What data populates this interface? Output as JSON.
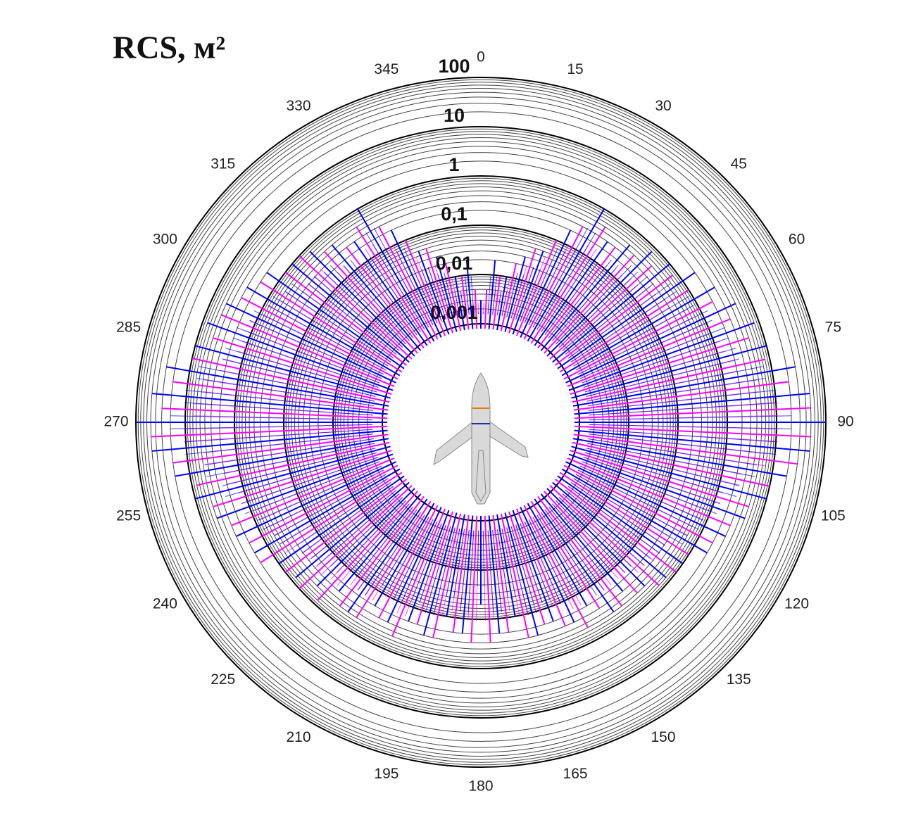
{
  "chart_data": {
    "type": "polar-spike",
    "title": "RCS, м²",
    "rscale": "log",
    "rlim": [
      1e-05,
      100
    ],
    "rticks": [
      {
        "value": 100,
        "label": "100"
      },
      10,
      1,
      {
        "value": 0.1,
        "label": "0,1"
      },
      {
        "value": 0.01,
        "label": "0,01"
      },
      {
        "value": 0.001,
        "label": "0,001"
      }
    ],
    "minor_grid": true,
    "thetaticks": [
      0,
      15,
      30,
      45,
      60,
      75,
      90,
      105,
      120,
      135,
      150,
      165,
      180,
      195,
      210,
      225,
      240,
      255,
      270,
      285,
      300,
      315,
      330,
      345
    ],
    "series": [
      {
        "color": "#ff00ff",
        "theta": [
          2.5,
          7.5,
          12.5,
          17.5,
          22.5,
          27.5,
          32.5,
          37.5,
          42.5,
          47.5,
          52.5,
          57.5,
          62.5,
          67.5,
          72.5,
          77.5,
          82.5,
          87.5,
          92.5,
          97.5,
          102.5,
          107.5,
          112.5,
          117.5,
          122.5,
          127.5,
          132.5,
          137.5,
          142.5,
          147.5,
          152.5,
          157.5,
          162.5,
          167.5,
          172.5,
          177.5,
          182.5,
          187.5,
          192.5,
          197.5,
          202.5,
          207.5,
          212.5,
          217.5,
          222.5,
          227.5,
          232.5,
          237.5,
          242.5,
          247.5,
          252.5,
          257.5,
          262.5,
          267.5,
          272.5,
          277.5,
          282.5,
          287.5,
          292.5,
          297.5,
          302.5,
          307.5,
          312.5,
          317.5,
          322.5,
          327.5,
          332.5,
          337.5,
          342.5,
          347.5,
          352.5,
          357.5
        ],
        "values": [
          0.005,
          0.01,
          0.02,
          0.05,
          0.1,
          0.3,
          0.5,
          0.3,
          0.4,
          0.5,
          0.8,
          1,
          2,
          3,
          5,
          8,
          20,
          50,
          50,
          30,
          10,
          5,
          3,
          2,
          1,
          1,
          0.8,
          0.5,
          0.5,
          0.3,
          0.5,
          0.3,
          0.2,
          0.3,
          0.2,
          0.3,
          0.3,
          0.2,
          0.3,
          0.2,
          0.5,
          0.3,
          0.5,
          0.5,
          0.8,
          1,
          1,
          2,
          2,
          3,
          5,
          8,
          20,
          50,
          30,
          20,
          10,
          5,
          5,
          3,
          2,
          1,
          1,
          0.5,
          0.3,
          0.5,
          0.3,
          0.1,
          0.05,
          0.02,
          0.01,
          0.005
        ]
      },
      {
        "color": "#0000ff",
        "theta": [
          0,
          5,
          10,
          15,
          20,
          25,
          30,
          35,
          40,
          45,
          50,
          55,
          60,
          65,
          70,
          75,
          80,
          85,
          90,
          95,
          100,
          105,
          110,
          115,
          120,
          125,
          130,
          135,
          140,
          145,
          150,
          155,
          160,
          165,
          170,
          175,
          180,
          185,
          190,
          195,
          200,
          205,
          210,
          215,
          220,
          225,
          230,
          235,
          240,
          245,
          250,
          255,
          260,
          265,
          270,
          275,
          280,
          285,
          290,
          295,
          300,
          305,
          310,
          315,
          320,
          325,
          330,
          335,
          340,
          345,
          350,
          355
        ],
        "values": [
          0.003,
          0.02,
          0.01,
          0.03,
          0.05,
          0.2,
          1,
          0.3,
          0.5,
          0.8,
          1,
          2,
          3,
          5,
          8,
          10,
          30,
          50,
          100,
          50,
          20,
          10,
          5,
          3,
          2,
          1,
          0.8,
          0.5,
          0.3,
          0.5,
          0.2,
          0.3,
          0.2,
          0.3,
          0.1,
          0.2,
          0.05,
          0.2,
          0.1,
          0.3,
          0.2,
          0.3,
          0.2,
          0.5,
          0.3,
          0.5,
          0.8,
          1,
          2,
          3,
          5,
          10,
          20,
          50,
          100,
          50,
          30,
          10,
          8,
          5,
          3,
          2,
          1,
          0.8,
          0.5,
          0.3,
          1,
          0.2,
          0.05,
          0.03,
          0.01,
          0.02
        ]
      }
    ]
  }
}
